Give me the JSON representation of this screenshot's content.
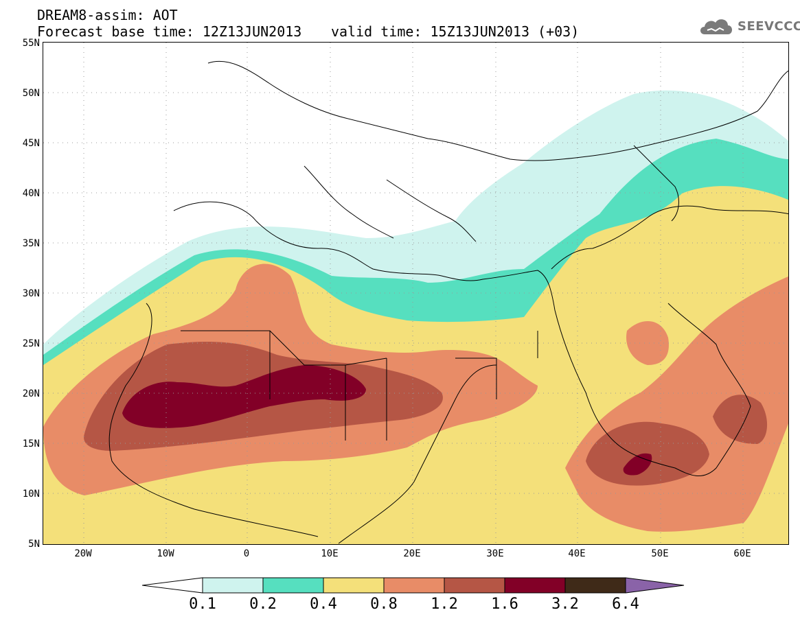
{
  "header": {
    "title_line1": "DREAM8-assim: AOT",
    "title_line2": "Forecast base time: 12Z13JUN2013",
    "valid_time": "valid time: 15Z13JUN2013 (+03)",
    "logo_text": "SEEVCCC"
  },
  "map": {
    "lat_labels": [
      "55N",
      "50N",
      "45N",
      "40N",
      "35N",
      "30N",
      "25N",
      "20N",
      "15N",
      "10N",
      "5N"
    ],
    "lon_labels": [
      "20W",
      "10W",
      "0",
      "10E",
      "20E",
      "30E",
      "40E",
      "50E",
      "60E"
    ],
    "colors": {
      "c01": "#cff3ee",
      "c02": "#56dfbf",
      "c04": "#f4e07a",
      "c08": "#e88c67",
      "c12": "#b55645",
      "c16": "#820027",
      "c32": "#3f2a18",
      "c64": "#8a63a8",
      "land_line": "#000000"
    }
  },
  "legend": {
    "labels": [
      "0.1",
      "0.2",
      "0.4",
      "0.8",
      "1.2",
      "1.6",
      "3.2",
      "6.4"
    ],
    "colors": [
      "#ffffff",
      "#cff3ee",
      "#56dfbf",
      "#f4e07a",
      "#e88c67",
      "#b55645",
      "#820027",
      "#3f2a18",
      "#8a63a8"
    ]
  }
}
